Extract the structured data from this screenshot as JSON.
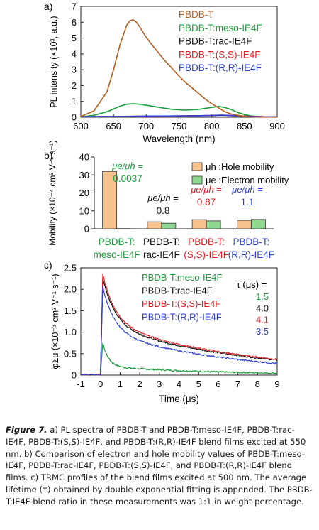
{
  "chart_data": [
    {
      "type": "line",
      "panel": "a)",
      "xlabel": "Wavelength (nm)",
      "ylabel": "PL intensity (×10³, a.u.)",
      "xlim": [
        600,
        900
      ],
      "ylim": [
        0,
        7
      ],
      "xticks": [
        "600",
        "650",
        "700",
        "750",
        "800",
        "850",
        "900"
      ],
      "yticks": [
        "0",
        "1",
        "2",
        "3",
        "4",
        "5",
        "6",
        "7"
      ],
      "legend_position": "top-right",
      "series": [
        {
          "name": "PBDB-T",
          "color": "#b85c1a",
          "x": [
            600,
            620,
            640,
            650,
            660,
            670,
            675,
            680,
            685,
            690,
            700,
            710,
            720,
            730,
            740,
            750,
            760,
            770,
            780,
            790,
            800,
            810,
            820,
            830,
            840,
            850,
            860,
            880,
            900
          ],
          "y": [
            0.05,
            0.4,
            1.6,
            3.0,
            4.6,
            5.8,
            6.1,
            6.15,
            6.0,
            5.7,
            5.05,
            4.5,
            4.0,
            3.5,
            3.05,
            2.6,
            2.2,
            1.85,
            1.5,
            1.15,
            0.85,
            0.6,
            0.35,
            0.2,
            0.12,
            0.06,
            0.03,
            0.02,
            0.01
          ]
        },
        {
          "name": "PBDB-T:meso-IE4F",
          "color": "#1a9e3a",
          "x": [
            600,
            620,
            640,
            650,
            660,
            670,
            680,
            690,
            700,
            720,
            740,
            760,
            780,
            800,
            810,
            820,
            830,
            840,
            850,
            860,
            880,
            900
          ],
          "y": [
            0.02,
            0.12,
            0.35,
            0.52,
            0.7,
            0.82,
            0.85,
            0.82,
            0.76,
            0.62,
            0.5,
            0.45,
            0.5,
            0.62,
            0.68,
            0.62,
            0.48,
            0.3,
            0.17,
            0.08,
            0.03,
            0.01
          ]
        },
        {
          "name": "PBDB-T:rac-IE4F",
          "color": "#111111",
          "x": [
            600,
            650,
            700,
            750,
            800,
            815,
            830,
            850,
            880,
            900
          ],
          "y": [
            0.03,
            0.05,
            0.06,
            0.08,
            0.1,
            0.12,
            0.1,
            0.06,
            0.03,
            0.02
          ]
        },
        {
          "name": "PBDB-T:(S,S)-IE4F",
          "color": "#e31e24",
          "x": [
            600,
            650,
            700,
            750,
            800,
            815,
            830,
            850,
            880,
            900
          ],
          "y": [
            0.03,
            0.05,
            0.06,
            0.08,
            0.11,
            0.13,
            0.11,
            0.07,
            0.03,
            0.02
          ]
        },
        {
          "name": "PBDB-T:(R,R)-IE4F",
          "color": "#2b3fd6",
          "x": [
            600,
            650,
            700,
            750,
            800,
            815,
            830,
            850,
            880,
            900
          ],
          "y": [
            0.03,
            0.05,
            0.07,
            0.08,
            0.11,
            0.13,
            0.11,
            0.07,
            0.03,
            0.02
          ]
        }
      ]
    },
    {
      "type": "bar",
      "panel": "b)",
      "ylabel": "Mobility (×10⁻⁴ cm² V⁻¹ s⁻¹)",
      "ylim": [
        0,
        40
      ],
      "yticks": [
        "0",
        "10",
        "20",
        "30",
        "40"
      ],
      "legend_position": "top-right",
      "categories": [
        {
          "line1": "PBDB-T:",
          "line2": "meso-IE4F",
          "color": "#1a9e3a"
        },
        {
          "line1": "PBDB-T:",
          "line2": "rac-IE4F",
          "color": "#111111"
        },
        {
          "line1": "PBDB-T:",
          "line2": "(S,S)-IE4F",
          "color": "#e31e24"
        },
        {
          "line1": "PBDB-T:",
          "line2": "(R,R)-IE4F",
          "color": "#2b3fd6"
        }
      ],
      "series": [
        {
          "name": "μh :Hole mobility",
          "color": "#f8c28f",
          "values": [
            32,
            3.9,
            5.1,
            4.7
          ]
        },
        {
          "name": "μe :Electron mobility",
          "color": "#8fd88f",
          "values": [
            0.12,
            3.1,
            4.4,
            5.2
          ]
        }
      ],
      "ratio_label": "μe/μh =",
      "ratios": [
        "0.0037",
        "0.8",
        "0.87",
        "1.1"
      ]
    },
    {
      "type": "line",
      "panel": "c)",
      "xlabel": "Time (μs)",
      "ylabel": "φΣμ (×10⁻³ cm² V⁻¹ s⁻¹)",
      "xlim": [
        -1,
        9
      ],
      "ylim": [
        0,
        2.5
      ],
      "xticks": [
        "-1",
        "0",
        "1",
        "2",
        "3",
        "4",
        "5",
        "6",
        "7",
        "8",
        "9"
      ],
      "yticks": [
        "0",
        "0.5",
        "1.0",
        "1.5",
        "2.0",
        "2.5"
      ],
      "legend_position": "top-left",
      "tau_header": "τ (μs) =",
      "series": [
        {
          "name": "PBDB-T:meso-IE4F",
          "color": "#1a9e3a",
          "tau": "1.5",
          "peak": 0.75,
          "A1": 0.55,
          "t1": 0.3,
          "A2": 0.2,
          "t2": 6,
          "base": 0.0
        },
        {
          "name": "PBDB-T:rac-IE4F",
          "color": "#111111",
          "tau": "4.0",
          "peak": 2.25,
          "A1": 1.1,
          "t1": 0.65,
          "A2": 1.15,
          "t2": 7.5,
          "base": 0.0
        },
        {
          "name": "PBDB-T:(S,S)-IE4F",
          "color": "#e31e24",
          "tau": "4.1",
          "peak": 2.35,
          "A1": 1.15,
          "t1": 0.65,
          "A2": 1.2,
          "t2": 7.5,
          "base": 0.0
        },
        {
          "name": "PBDB-T:(R,R)-IE4F",
          "color": "#2b3fd6",
          "tau": "3.5",
          "peak": 2.05,
          "A1": 1.05,
          "t1": 0.6,
          "A2": 1.0,
          "t2": 6.8,
          "base": 0.0
        }
      ]
    }
  ],
  "caption": {
    "label": "Figure 7.",
    "text": " a) PL spectra of PBDB-T and PBDB-T:meso-IE4F, PBDB-T:rac-IE4F, PBDB-T:(S,S)-IE4F, and PBDB-T:(R,R)-IE4F blend films excited at 550 nm. b) Comparison of electron and hole mobility values of PBDB-T:meso-IE4F, PBDB-T:rac-IE4F, PBDB-T:(S,S)-IE4F, and PBDB-T:(R,R)-IE4F blend films. c) TRMC profiles of the blend films excited at 500 nm. The average lifetime (τ) obtained by double exponential fitting is appended. The PBDB-T:IE4F blend ratio in these measurements was 1:1 in weight percentage."
  }
}
